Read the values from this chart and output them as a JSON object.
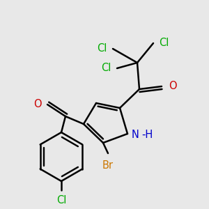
{
  "background_color": "#e8e8e8",
  "bond_color": "#000000",
  "bond_width": 1.8,
  "figsize": [
    3.0,
    3.0
  ],
  "dpi": 100,
  "colors": {
    "N": "#0000cc",
    "O": "#cc0000",
    "Cl": "#00aa00",
    "Br": "#cc7700",
    "C": "#000000"
  }
}
